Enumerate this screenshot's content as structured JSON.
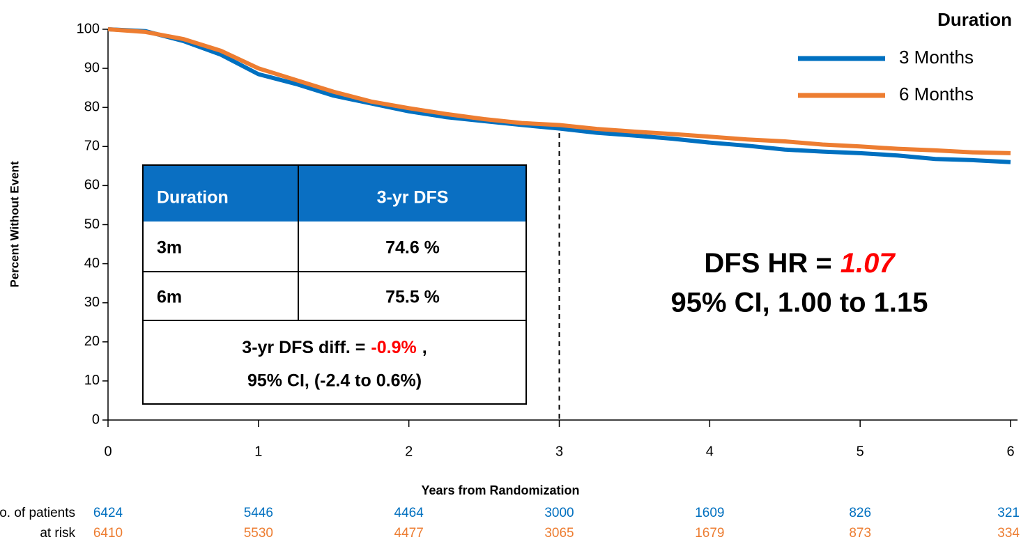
{
  "chart_data": {
    "type": "line",
    "y_label": "Percent Without Event",
    "x_label": "Years from Randomization",
    "x": [
      0,
      0.25,
      0.5,
      0.75,
      1,
      1.25,
      1.5,
      1.75,
      2,
      2.25,
      2.5,
      2.75,
      3,
      3.25,
      3.5,
      3.75,
      4,
      4.25,
      4.5,
      4.75,
      5,
      5.25,
      5.5,
      5.75,
      6
    ],
    "series": [
      {
        "name": "3 Months",
        "color": "#0070c0",
        "values": [
          100,
          99.5,
          97,
          93.5,
          88.5,
          86,
          83,
          81,
          79,
          77.5,
          76.5,
          75.5,
          74.6,
          73.5,
          72.8,
          72,
          71,
          70.2,
          69.2,
          68.7,
          68.3,
          67.7,
          66.8,
          66.5,
          66
        ],
        "at_risk": [
          "6424",
          "5446",
          "4464",
          "3000",
          "1609",
          "826",
          "321"
        ]
      },
      {
        "name": "6 Months",
        "color": "#ed7d31",
        "values": [
          100,
          99.3,
          97.5,
          94.5,
          90,
          87,
          84,
          81.5,
          79.8,
          78.3,
          77,
          76,
          75.5,
          74.5,
          73.8,
          73.2,
          72.5,
          71.8,
          71.3,
          70.5,
          70,
          69.4,
          69,
          68.5,
          68.3
        ],
        "at_risk": [
          "6410",
          "5530",
          "4477",
          "3065",
          "1679",
          "873",
          "334"
        ]
      }
    ],
    "legend_title": "Duration",
    "legend_position": "upper right",
    "xlim": [
      0,
      6
    ],
    "xticks": [
      0,
      1,
      2,
      3,
      4,
      5,
      6
    ],
    "ylim": [
      0,
      100
    ],
    "yticks": [
      0,
      10,
      20,
      30,
      40,
      50,
      60,
      70,
      80,
      90,
      100
    ],
    "reference_line_x": 3,
    "risk_label": [
      "No. of patients",
      "at risk"
    ],
    "table": {
      "header": [
        "Duration",
        "3-yr DFS"
      ],
      "rows": [
        [
          "3m",
          "74.6 %"
        ],
        [
          "6m",
          "75.5 %"
        ]
      ],
      "footer_prefix": "3-yr DFS diff. =",
      "footer_value": "-0.9%",
      "footer_suffix": ",",
      "footer_ci": "95% CI, (-2.4 to 0.6%)"
    },
    "hr_prefix": "DFS HR =",
    "hr_value": "1.07",
    "hr_ci": "95% CI, 1.00 to 1.15"
  }
}
